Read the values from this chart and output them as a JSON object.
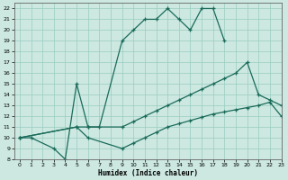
{
  "xlabel": "Humidex (Indice chaleur)",
  "bg_color": "#cce8e0",
  "grid_color": "#99ccc0",
  "line_color": "#1a6b5a",
  "xlim": [
    -0.5,
    23
  ],
  "ylim": [
    8,
    22.5
  ],
  "xticks": [
    0,
    1,
    2,
    3,
    4,
    5,
    6,
    7,
    8,
    9,
    10,
    11,
    12,
    13,
    14,
    15,
    16,
    17,
    18,
    19,
    20,
    21,
    22,
    23
  ],
  "yticks": [
    8,
    9,
    10,
    11,
    12,
    13,
    14,
    15,
    16,
    17,
    18,
    19,
    20,
    21,
    22
  ],
  "curve1_x": [
    0,
    1,
    3,
    4,
    5,
    6,
    7,
    9,
    10,
    11,
    12,
    13,
    14,
    15,
    16,
    17,
    18
  ],
  "curve1_y": [
    10,
    10,
    9,
    8,
    15,
    11,
    11,
    19,
    20,
    21,
    21,
    22,
    21,
    20,
    22,
    22,
    19
  ],
  "curve2_x": [
    0,
    5,
    6,
    9,
    10,
    11,
    12,
    13,
    14,
    15,
    16,
    17,
    18,
    19,
    20,
    21,
    22,
    23
  ],
  "curve2_y": [
    10,
    11,
    11,
    11,
    11.5,
    12,
    12.5,
    13,
    13.5,
    14,
    14.5,
    15,
    15.5,
    16,
    17,
    14,
    13.5,
    13
  ],
  "curve3_x": [
    0,
    5,
    6,
    9,
    10,
    11,
    12,
    13,
    14,
    15,
    16,
    17,
    18,
    19,
    20,
    21,
    22,
    23
  ],
  "curve3_y": [
    10,
    11,
    10,
    9,
    9.5,
    10,
    10.5,
    11,
    11.3,
    11.6,
    11.9,
    12.2,
    12.4,
    12.6,
    12.8,
    13,
    13.3,
    12
  ]
}
